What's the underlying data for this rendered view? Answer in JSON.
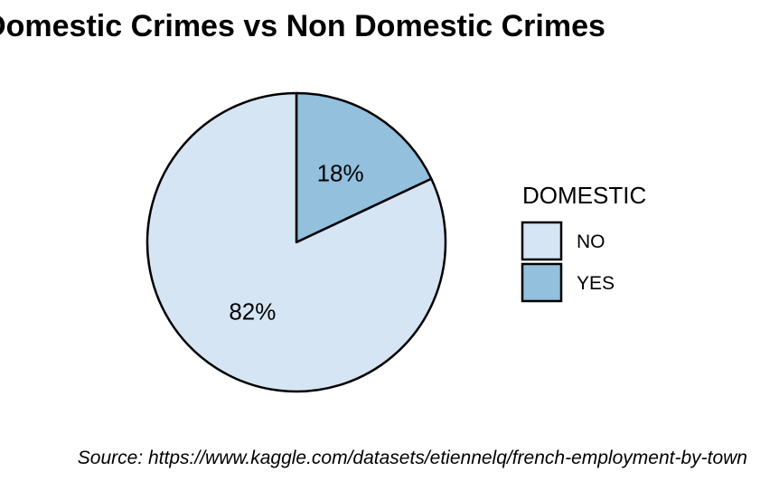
{
  "chart_data": {
    "type": "pie",
    "title": "Domestic Crimes vs Non Domestic Crimes",
    "caption": "Source: https://www.kaggle.com/datasets/etiennelq/french-employment-by-town",
    "legend": {
      "title": "DOMESTIC",
      "position": "right"
    },
    "slices": [
      {
        "label": "NO",
        "value": 82,
        "text": "82%",
        "color": "#d6e5f4"
      },
      {
        "label": "YES",
        "value": 18,
        "text": "18%",
        "color": "#92c0dd"
      }
    ]
  }
}
